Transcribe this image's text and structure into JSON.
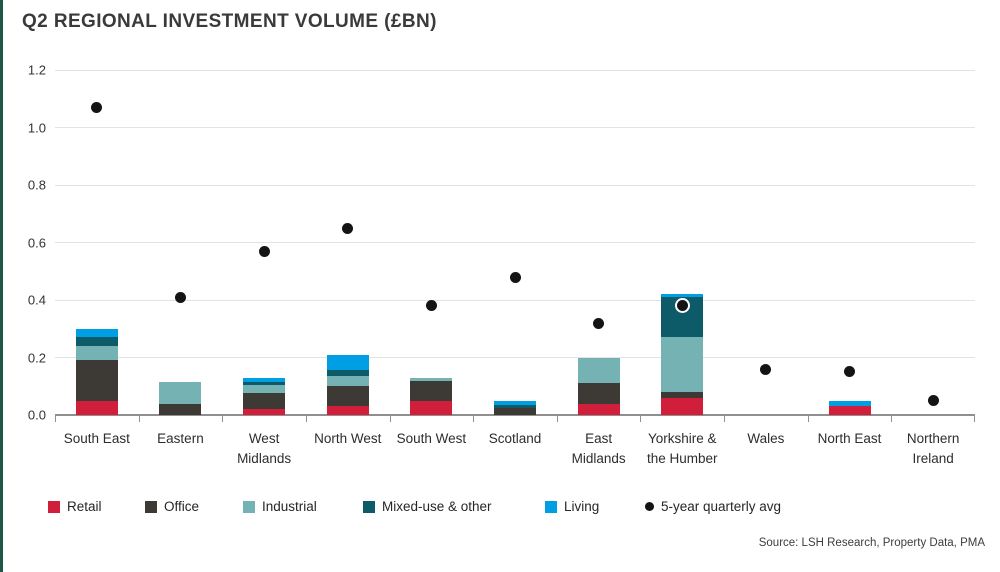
{
  "page": {
    "title": "Q2 REGIONAL INVESTMENT VOLUME (£BN)",
    "source": "Source: LSH Research, Property Data, PMA",
    "accent_edge_color": "#1c5747"
  },
  "chart_data": {
    "type": "bar",
    "stacked": true,
    "title": "Q2 REGIONAL INVESTMENT VOLUME (£BN)",
    "xlabel": "",
    "ylabel": "",
    "ylim": [
      0,
      1.2
    ],
    "yticks": [
      0,
      0.2,
      0.4,
      0.6,
      0.8,
      1.0,
      1.2
    ],
    "ytick_labels": [
      "0.0",
      "0.2",
      "0.4",
      "0.6",
      "0.8",
      "1.0",
      "1.2"
    ],
    "grid": "horizontal",
    "legend_position": "bottom",
    "categories": [
      "South East",
      "Eastern",
      "West Midlands",
      "North West",
      "South West",
      "Scotland",
      "East Midlands",
      "Yorkshire & the Humber",
      "Wales",
      "North East",
      "Northern Ireland"
    ],
    "series": [
      {
        "name": "Retail",
        "color": "#d11e3b",
        "values": [
          0.05,
          0,
          0.02,
          0.03,
          0.05,
          0,
          0.04,
          0.06,
          0,
          0.03,
          0
        ]
      },
      {
        "name": "Office",
        "color": "#3d3935",
        "values": [
          0.14,
          0.04,
          0.055,
          0.07,
          0.07,
          0.025,
          0.07,
          0.02,
          0,
          0,
          0
        ]
      },
      {
        "name": "Industrial",
        "color": "#74b2b4",
        "values": [
          0.05,
          0.075,
          0.03,
          0.035,
          0.01,
          0,
          0.09,
          0.19,
          0,
          0,
          0
        ]
      },
      {
        "name": "Mixed-use & other",
        "color": "#0d5a68",
        "values": [
          0.03,
          0,
          0.01,
          0.02,
          0,
          0.01,
          0,
          0.14,
          0,
          0,
          0
        ]
      },
      {
        "name": "Living",
        "color": "#009ee2",
        "values": [
          0.03,
          0,
          0.015,
          0.055,
          0,
          0.015,
          0,
          0.01,
          0,
          0.02,
          0
        ]
      }
    ],
    "scatter_series": {
      "name": "5-year quarterly avg",
      "color": "#141414",
      "values": [
        1.07,
        0.41,
        0.57,
        0.65,
        0.38,
        0.48,
        0.32,
        0.38,
        0.16,
        0.15,
        0.05
      ]
    }
  },
  "legend": {
    "items": [
      {
        "label": "Retail",
        "marker": "square",
        "color": "#d11e3b"
      },
      {
        "label": "Office",
        "marker": "square",
        "color": "#3d3935"
      },
      {
        "label": "Industrial",
        "marker": "square",
        "color": "#74b2b4"
      },
      {
        "label": "Mixed-use & other",
        "marker": "square",
        "color": "#0d5a68"
      },
      {
        "label": "Living",
        "marker": "square",
        "color": "#009ee2"
      },
      {
        "label": "5-year quarterly avg",
        "marker": "dot",
        "color": "#141414"
      }
    ]
  }
}
